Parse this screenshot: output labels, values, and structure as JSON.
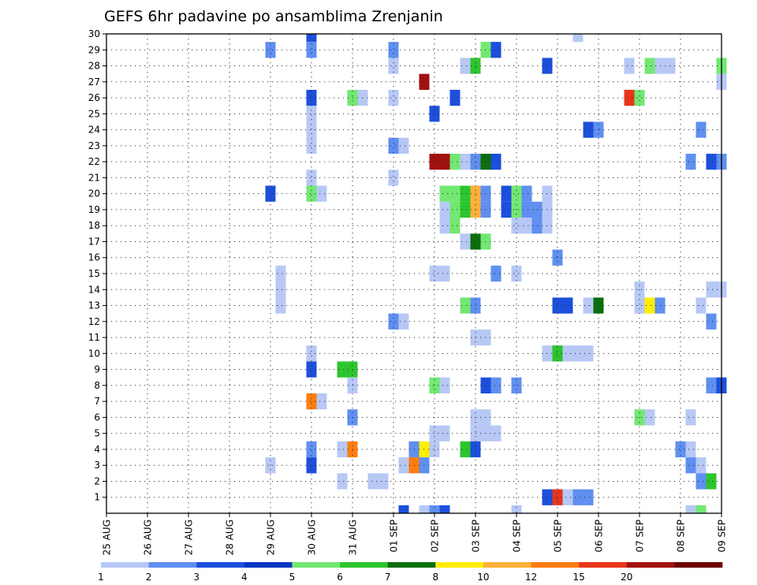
{
  "chart_data": {
    "type": "heatmap",
    "title": "GEFS 6hr padavine po ansamblima Zrenjanin",
    "xlabel": "",
    "ylabel": "",
    "x_tick_labels": [
      "25 AUG",
      "26 AUG",
      "27 AUG",
      "28 AUG",
      "29 AUG",
      "30 AUG",
      "31 AUG",
      "01 SEP",
      "02 SEP",
      "03 SEP",
      "04 SEP",
      "05 SEP",
      "06 SEP",
      "07 SEP",
      "08 SEP",
      "09 SEP"
    ],
    "x_range_days": [
      0,
      15
    ],
    "y_tick_labels": [
      "1",
      "2",
      "3",
      "4",
      "5",
      "6",
      "7",
      "8",
      "9",
      "10",
      "11",
      "12",
      "13",
      "14",
      "15",
      "16",
      "17",
      "18",
      "19",
      "20",
      "21",
      "22",
      "23",
      "24",
      "25",
      "26",
      "27",
      "28",
      "29",
      "30"
    ],
    "y_range": [
      0,
      30
    ],
    "grid": true,
    "colorbar": {
      "labels": [
        "1",
        "2",
        "3",
        "4",
        "5",
        "6",
        "7",
        "8",
        "10",
        "12",
        "15",
        "20"
      ],
      "colors": [
        "#b7c8f5",
        "#5f8ff0",
        "#1c4fdc",
        "#0b36c4",
        "#72e872",
        "#2dc52d",
        "#0d6e0d",
        "#ffee00",
        "#ffb03a",
        "#ff7d10",
        "#e8361b",
        "#a21010",
        "#6e0000"
      ]
    },
    "cells": [
      [
        5.0,
        30,
        2
      ],
      [
        11.5,
        30,
        0
      ],
      [
        4.0,
        29,
        1
      ],
      [
        5.0,
        29,
        1
      ],
      [
        7.0,
        29,
        1
      ],
      [
        9.25,
        29,
        4
      ],
      [
        9.5,
        29,
        2
      ],
      [
        7.0,
        28,
        0
      ],
      [
        8.75,
        28,
        0
      ],
      [
        9.0,
        28,
        5
      ],
      [
        10.75,
        28,
        2
      ],
      [
        12.75,
        28,
        0
      ],
      [
        13.25,
        28,
        4
      ],
      [
        13.5,
        28,
        0
      ],
      [
        13.75,
        28,
        0
      ],
      [
        15.0,
        28,
        4
      ],
      [
        7.75,
        27,
        11
      ],
      [
        15.0,
        27,
        0
      ],
      [
        5.0,
        26,
        2
      ],
      [
        6.0,
        26,
        4
      ],
      [
        6.25,
        26,
        0
      ],
      [
        7.0,
        26,
        0
      ],
      [
        8.5,
        26,
        2
      ],
      [
        12.75,
        26,
        10
      ],
      [
        13.0,
        26,
        4
      ],
      [
        8.0,
        25,
        2
      ],
      [
        5.0,
        25,
        0
      ],
      [
        5.0,
        24,
        0
      ],
      [
        11.75,
        24,
        2
      ],
      [
        12.0,
        24,
        1
      ],
      [
        14.5,
        24,
        1
      ],
      [
        7.0,
        23,
        1
      ],
      [
        7.25,
        23,
        0
      ],
      [
        5.0,
        23,
        0
      ],
      [
        8.0,
        22,
        11
      ],
      [
        8.25,
        22,
        11
      ],
      [
        8.5,
        22,
        4
      ],
      [
        8.75,
        22,
        0
      ],
      [
        9.0,
        22,
        1
      ],
      [
        9.25,
        22,
        6
      ],
      [
        9.5,
        22,
        2
      ],
      [
        14.25,
        22,
        1
      ],
      [
        14.75,
        22,
        2
      ],
      [
        15.0,
        22,
        1
      ],
      [
        5.0,
        21,
        0
      ],
      [
        7.0,
        21,
        0
      ],
      [
        4.0,
        20,
        2
      ],
      [
        5.0,
        20,
        4
      ],
      [
        5.25,
        20,
        0
      ],
      [
        8.25,
        20,
        4
      ],
      [
        8.5,
        20,
        4
      ],
      [
        8.75,
        20,
        5
      ],
      [
        9.0,
        20,
        8
      ],
      [
        9.25,
        20,
        1
      ],
      [
        9.75,
        20,
        2
      ],
      [
        10.0,
        20,
        4
      ],
      [
        10.25,
        20,
        1
      ],
      [
        10.75,
        20,
        0
      ],
      [
        8.25,
        19,
        0
      ],
      [
        8.5,
        19,
        4
      ],
      [
        8.75,
        19,
        5
      ],
      [
        9.0,
        19,
        8
      ],
      [
        9.25,
        19,
        1
      ],
      [
        9.75,
        19,
        2
      ],
      [
        10.0,
        19,
        4
      ],
      [
        10.25,
        19,
        1
      ],
      [
        10.75,
        19,
        0
      ],
      [
        10.5,
        19,
        1
      ],
      [
        8.25,
        18,
        0
      ],
      [
        8.5,
        18,
        4
      ],
      [
        10.0,
        18,
        0
      ],
      [
        10.25,
        18,
        0
      ],
      [
        10.5,
        18,
        1
      ],
      [
        10.75,
        18,
        0
      ],
      [
        8.75,
        17,
        0
      ],
      [
        9.0,
        17,
        6
      ],
      [
        9.25,
        17,
        4
      ],
      [
        11.0,
        16,
        1
      ],
      [
        4.25,
        15,
        0
      ],
      [
        8.0,
        15,
        0
      ],
      [
        8.25,
        15,
        0
      ],
      [
        9.5,
        15,
        1
      ],
      [
        10.0,
        15,
        0
      ],
      [
        4.25,
        14,
        0
      ],
      [
        13.0,
        14,
        0
      ],
      [
        14.75,
        14,
        0
      ],
      [
        15.0,
        14,
        0
      ],
      [
        4.25,
        13,
        0
      ],
      [
        8.75,
        13,
        4
      ],
      [
        9.0,
        13,
        1
      ],
      [
        11.0,
        13,
        2
      ],
      [
        11.25,
        13,
        2
      ],
      [
        11.75,
        13,
        0
      ],
      [
        12.0,
        13,
        6
      ],
      [
        13.0,
        13,
        0
      ],
      [
        13.25,
        13,
        7
      ],
      [
        13.5,
        13,
        1
      ],
      [
        14.5,
        13,
        0
      ],
      [
        7.0,
        12,
        1
      ],
      [
        7.25,
        12,
        0
      ],
      [
        14.75,
        12,
        1
      ],
      [
        9.0,
        11,
        0
      ],
      [
        9.25,
        11,
        0
      ],
      [
        5.0,
        10,
        0
      ],
      [
        10.75,
        10,
        0
      ],
      [
        11.0,
        10,
        5
      ],
      [
        11.25,
        10,
        0
      ],
      [
        11.5,
        10,
        0
      ],
      [
        11.75,
        10,
        0
      ],
      [
        5.0,
        9,
        2
      ],
      [
        5.75,
        9,
        5
      ],
      [
        6.0,
        9,
        5
      ],
      [
        6.0,
        8,
        0
      ],
      [
        8.0,
        8,
        4
      ],
      [
        8.25,
        8,
        0
      ],
      [
        9.25,
        8,
        2
      ],
      [
        9.5,
        8,
        1
      ],
      [
        10.0,
        8,
        1
      ],
      [
        14.75,
        8,
        1
      ],
      [
        15.0,
        8,
        2
      ],
      [
        5.0,
        7,
        9
      ],
      [
        5.25,
        7,
        0
      ],
      [
        6.0,
        6,
        1
      ],
      [
        9.0,
        6,
        0
      ],
      [
        9.25,
        6,
        0
      ],
      [
        13.0,
        6,
        4
      ],
      [
        13.25,
        6,
        0
      ],
      [
        14.25,
        6,
        0
      ],
      [
        8.0,
        5,
        0
      ],
      [
        8.25,
        5,
        0
      ],
      [
        9.0,
        5,
        0
      ],
      [
        9.25,
        5,
        0
      ],
      [
        9.5,
        5,
        0
      ],
      [
        5.0,
        4,
        1
      ],
      [
        5.75,
        4,
        0
      ],
      [
        6.0,
        4,
        9
      ],
      [
        7.5,
        4,
        1
      ],
      [
        7.75,
        4,
        7
      ],
      [
        8.0,
        4,
        0
      ],
      [
        8.75,
        4,
        5
      ],
      [
        9.0,
        4,
        2
      ],
      [
        14.0,
        4,
        1
      ],
      [
        14.25,
        4,
        0
      ],
      [
        4.0,
        3,
        0
      ],
      [
        5.0,
        3,
        2
      ],
      [
        7.25,
        3,
        0
      ],
      [
        7.5,
        3,
        9
      ],
      [
        7.75,
        3,
        1
      ],
      [
        14.25,
        3,
        1
      ],
      [
        14.5,
        3,
        0
      ],
      [
        5.75,
        2,
        0
      ],
      [
        6.5,
        2,
        0
      ],
      [
        6.75,
        2,
        0
      ],
      [
        14.5,
        2,
        1
      ],
      [
        14.75,
        2,
        5
      ],
      [
        10.75,
        1,
        2
      ],
      [
        11.0,
        1,
        10
      ],
      [
        11.25,
        1,
        0
      ],
      [
        11.5,
        1,
        1
      ],
      [
        11.75,
        1,
        1
      ],
      [
        7.25,
        0,
        2
      ],
      [
        7.75,
        0,
        0
      ],
      [
        8.0,
        0,
        1
      ],
      [
        8.25,
        0,
        2
      ],
      [
        10.0,
        0,
        0
      ],
      [
        14.25,
        0,
        0
      ],
      [
        14.5,
        0,
        4
      ]
    ]
  }
}
